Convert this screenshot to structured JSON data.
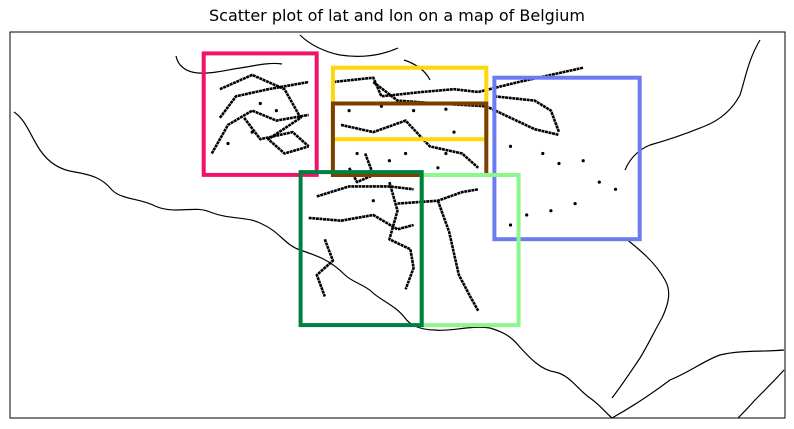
{
  "chart_data": {
    "type": "scatter",
    "title": "Scatter plot of lat and lon on a map of Belgium",
    "xlabel": "",
    "ylabel": "",
    "xlim": [
      2.2,
      7.0
    ],
    "ylim": [
      49.2,
      51.9
    ],
    "grid": false,
    "legend": "none",
    "point_color": "#000000",
    "boxes": [
      {
        "color": "#f0116a",
        "lon": [
          3.4,
          4.1
        ],
        "lat": [
          50.9,
          51.75
        ]
      },
      {
        "color": "#ffd60a",
        "lon": [
          4.2,
          5.15
        ],
        "lat": [
          51.15,
          51.65
        ]
      },
      {
        "color": "#6b7cf2",
        "lon": [
          5.2,
          6.1
        ],
        "lat": [
          50.45,
          51.58
        ]
      },
      {
        "color": "#7b3f00",
        "lon": [
          4.2,
          5.15
        ],
        "lat": [
          50.9,
          51.4
        ]
      },
      {
        "color": "#8cf78c",
        "lon": [
          4.75,
          5.35
        ],
        "lat": [
          49.85,
          50.9
        ]
      },
      {
        "color": "#008040",
        "lon": [
          4.0,
          4.75
        ],
        "lat": [
          49.85,
          50.92
        ]
      }
    ],
    "tracks": [
      [
        [
          3.5,
          51.5
        ],
        [
          3.7,
          51.6
        ],
        [
          3.9,
          51.5
        ],
        [
          4.0,
          51.3
        ],
        [
          3.8,
          51.15
        ],
        [
          3.9,
          51.05
        ],
        [
          4.05,
          51.1
        ]
      ],
      [
        [
          3.5,
          51.3
        ],
        [
          3.6,
          51.45
        ],
        [
          3.8,
          51.5
        ],
        [
          4.05,
          51.55
        ]
      ],
      [
        [
          3.45,
          51.05
        ],
        [
          3.55,
          51.25
        ],
        [
          3.7,
          51.35
        ],
        [
          3.85,
          51.28
        ],
        [
          4.05,
          51.32
        ]
      ],
      [
        [
          3.65,
          51.3
        ],
        [
          3.75,
          51.15
        ],
        [
          3.95,
          51.2
        ],
        [
          4.05,
          51.1
        ]
      ],
      [
        [
          4.2,
          51.55
        ],
        [
          4.45,
          51.58
        ],
        [
          4.5,
          51.45
        ],
        [
          4.75,
          51.48
        ],
        [
          4.95,
          51.5
        ],
        [
          5.1,
          51.48
        ],
        [
          5.35,
          51.55
        ],
        [
          5.55,
          51.6
        ],
        [
          5.75,
          51.65
        ]
      ],
      [
        [
          4.45,
          51.55
        ],
        [
          4.6,
          51.42
        ],
        [
          4.85,
          51.4
        ],
        [
          5.15,
          51.38
        ],
        [
          5.3,
          51.3
        ],
        [
          5.45,
          51.22
        ],
        [
          5.6,
          51.18
        ]
      ],
      [
        [
          5.2,
          51.45
        ],
        [
          5.45,
          51.42
        ],
        [
          5.55,
          51.35
        ],
        [
          5.6,
          51.2
        ]
      ],
      [
        [
          4.25,
          51.25
        ],
        [
          4.45,
          51.2
        ],
        [
          4.65,
          51.28
        ],
        [
          4.8,
          51.1
        ],
        [
          5.0,
          51.05
        ],
        [
          5.1,
          50.95
        ]
      ],
      [
        [
          4.4,
          51.05
        ],
        [
          4.45,
          50.9
        ],
        [
          4.35,
          50.85
        ],
        [
          4.3,
          50.95
        ]
      ],
      [
        [
          4.1,
          50.75
        ],
        [
          4.3,
          50.82
        ],
        [
          4.55,
          50.82
        ],
        [
          4.7,
          50.8
        ]
      ],
      [
        [
          4.05,
          50.6
        ],
        [
          4.25,
          50.58
        ],
        [
          4.45,
          50.62
        ],
        [
          4.6,
          50.52
        ],
        [
          4.7,
          50.55
        ]
      ],
      [
        [
          4.55,
          50.85
        ],
        [
          4.6,
          50.65
        ],
        [
          4.55,
          50.45
        ],
        [
          4.68,
          50.38
        ],
        [
          4.7,
          50.25
        ],
        [
          4.65,
          50.1
        ]
      ],
      [
        [
          4.6,
          50.7
        ],
        [
          4.85,
          50.72
        ],
        [
          5.0,
          50.78
        ],
        [
          5.1,
          50.8
        ]
      ],
      [
        [
          4.85,
          50.72
        ],
        [
          4.92,
          50.5
        ],
        [
          4.95,
          50.35
        ],
        [
          4.98,
          50.2
        ],
        [
          5.05,
          50.05
        ],
        [
          5.1,
          49.95
        ]
      ],
      [
        [
          4.15,
          50.45
        ],
        [
          4.2,
          50.3
        ],
        [
          4.1,
          50.2
        ],
        [
          4.15,
          50.05
        ]
      ]
    ],
    "scatter_points": [
      [
        3.75,
        51.4
      ],
      [
        3.85,
        51.35
      ],
      [
        4.1,
        51.4
      ],
      [
        4.3,
        51.35
      ],
      [
        4.5,
        51.38
      ],
      [
        4.7,
        51.35
      ],
      [
        4.9,
        51.36
      ],
      [
        4.35,
        51.05
      ],
      [
        4.55,
        51.0
      ],
      [
        4.65,
        51.05
      ],
      [
        4.95,
        51.2
      ],
      [
        4.9,
        51.05
      ],
      [
        4.85,
        50.95
      ],
      [
        5.3,
        51.1
      ],
      [
        5.5,
        51.05
      ],
      [
        5.6,
        50.98
      ],
      [
        5.75,
        51.0
      ],
      [
        5.85,
        50.85
      ],
      [
        5.95,
        50.8
      ],
      [
        5.7,
        50.7
      ],
      [
        5.55,
        50.65
      ],
      [
        5.4,
        50.62
      ],
      [
        5.3,
        50.55
      ],
      [
        4.45,
        50.72
      ],
      [
        3.55,
        51.12
      ],
      [
        3.7,
        51.2
      ]
    ]
  }
}
